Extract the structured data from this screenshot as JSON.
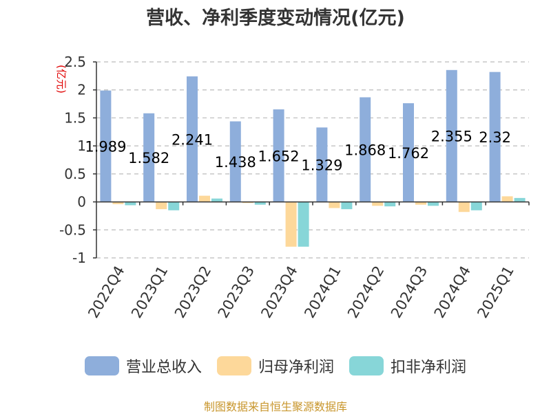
{
  "chart_data": {
    "type": "bar",
    "title": "营收、净利季度变动情况(亿元)",
    "unit_label": "(亿元)",
    "categories": [
      "2022Q4",
      "2023Q1",
      "2023Q2",
      "2023Q3",
      "2023Q4",
      "2024Q1",
      "2024Q2",
      "2024Q3",
      "2024Q4",
      "2025Q1"
    ],
    "series": [
      {
        "name": "营业总收入",
        "color": "#8eaedb",
        "values": [
          1.989,
          1.582,
          2.241,
          1.438,
          1.652,
          1.329,
          1.868,
          1.762,
          2.355,
          2.32
        ],
        "labels": [
          "1.989",
          "1.582",
          "2.241",
          "1.438",
          "1.652",
          "1.329",
          "1.868",
          "1.762",
          "2.355",
          "2.32"
        ]
      },
      {
        "name": "归母净利润",
        "color": "#fdd89a",
        "values": [
          -0.04,
          -0.13,
          0.11,
          -0.02,
          -0.8,
          -0.11,
          -0.07,
          -0.05,
          -0.18,
          0.1
        ]
      },
      {
        "name": "扣非净利润",
        "color": "#87d6d8",
        "values": [
          -0.06,
          -0.15,
          0.06,
          -0.05,
          -0.8,
          -0.13,
          -0.08,
          -0.07,
          -0.15,
          0.07
        ]
      }
    ],
    "ylim": [
      -1,
      2.5
    ],
    "yticks": [
      -1,
      -0.5,
      0,
      0.5,
      1,
      1.5,
      2,
      2.5
    ],
    "ytick_labels": [
      "-1",
      "-0.5",
      "0",
      "0.5",
      "1",
      "1.5",
      "2",
      "2.5"
    ],
    "grid": "horizontal-dashed",
    "legend_position": "bottom"
  },
  "source": "制图数据来自恒生聚源数据库"
}
